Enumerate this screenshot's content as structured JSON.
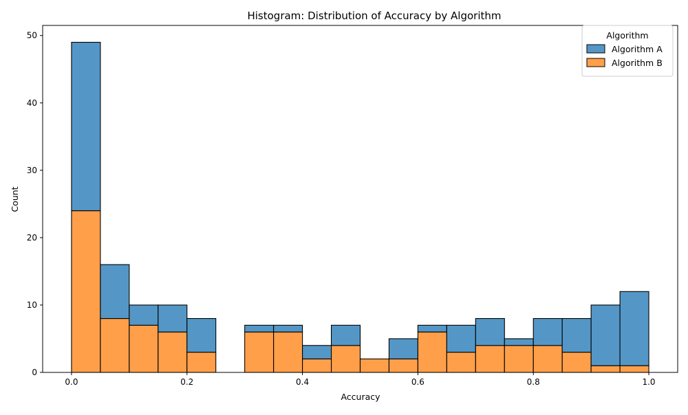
{
  "chart_data": {
    "type": "bar",
    "stacked": true,
    "title": "Histogram: Distribution of Accuracy by Algorithm",
    "xlabel": "Accuracy",
    "ylabel": "Count",
    "xlim": [
      -0.05,
      1.05
    ],
    "ylim": [
      0,
      51.5
    ],
    "bin_edges": [
      0.0,
      0.05,
      0.1,
      0.15,
      0.2,
      0.25,
      0.3,
      0.35,
      0.4,
      0.45,
      0.5,
      0.55,
      0.6,
      0.65,
      0.7,
      0.75,
      0.8,
      0.85,
      0.9,
      0.95,
      1.0
    ],
    "x_ticks": [
      0.0,
      0.2,
      0.4,
      0.6,
      0.8,
      1.0
    ],
    "x_tick_labels": [
      "0.0",
      "0.2",
      "0.4",
      "0.6",
      "0.8",
      "1.0"
    ],
    "y_ticks": [
      0,
      10,
      20,
      30,
      40,
      50
    ],
    "y_tick_labels": [
      "0",
      "10",
      "20",
      "30",
      "40",
      "50"
    ],
    "grid": false,
    "legend": {
      "title": "Algorithm",
      "placement": "top-right"
    },
    "series": [
      {
        "name": "Algorithm B",
        "color": "#ff9f4a",
        "values": [
          24,
          8,
          7,
          6,
          3,
          0,
          6,
          6,
          2,
          4,
          2,
          2,
          6,
          3,
          4,
          4,
          4,
          3,
          1,
          1
        ]
      },
      {
        "name": "Algorithm A",
        "color": "#5497c7",
        "values": [
          25,
          8,
          3,
          4,
          5,
          0,
          1,
          1,
          2,
          3,
          0,
          3,
          1,
          4,
          4,
          1,
          4,
          5,
          9,
          11
        ]
      }
    ],
    "legend_order": [
      "Algorithm A",
      "Algorithm B"
    ]
  }
}
